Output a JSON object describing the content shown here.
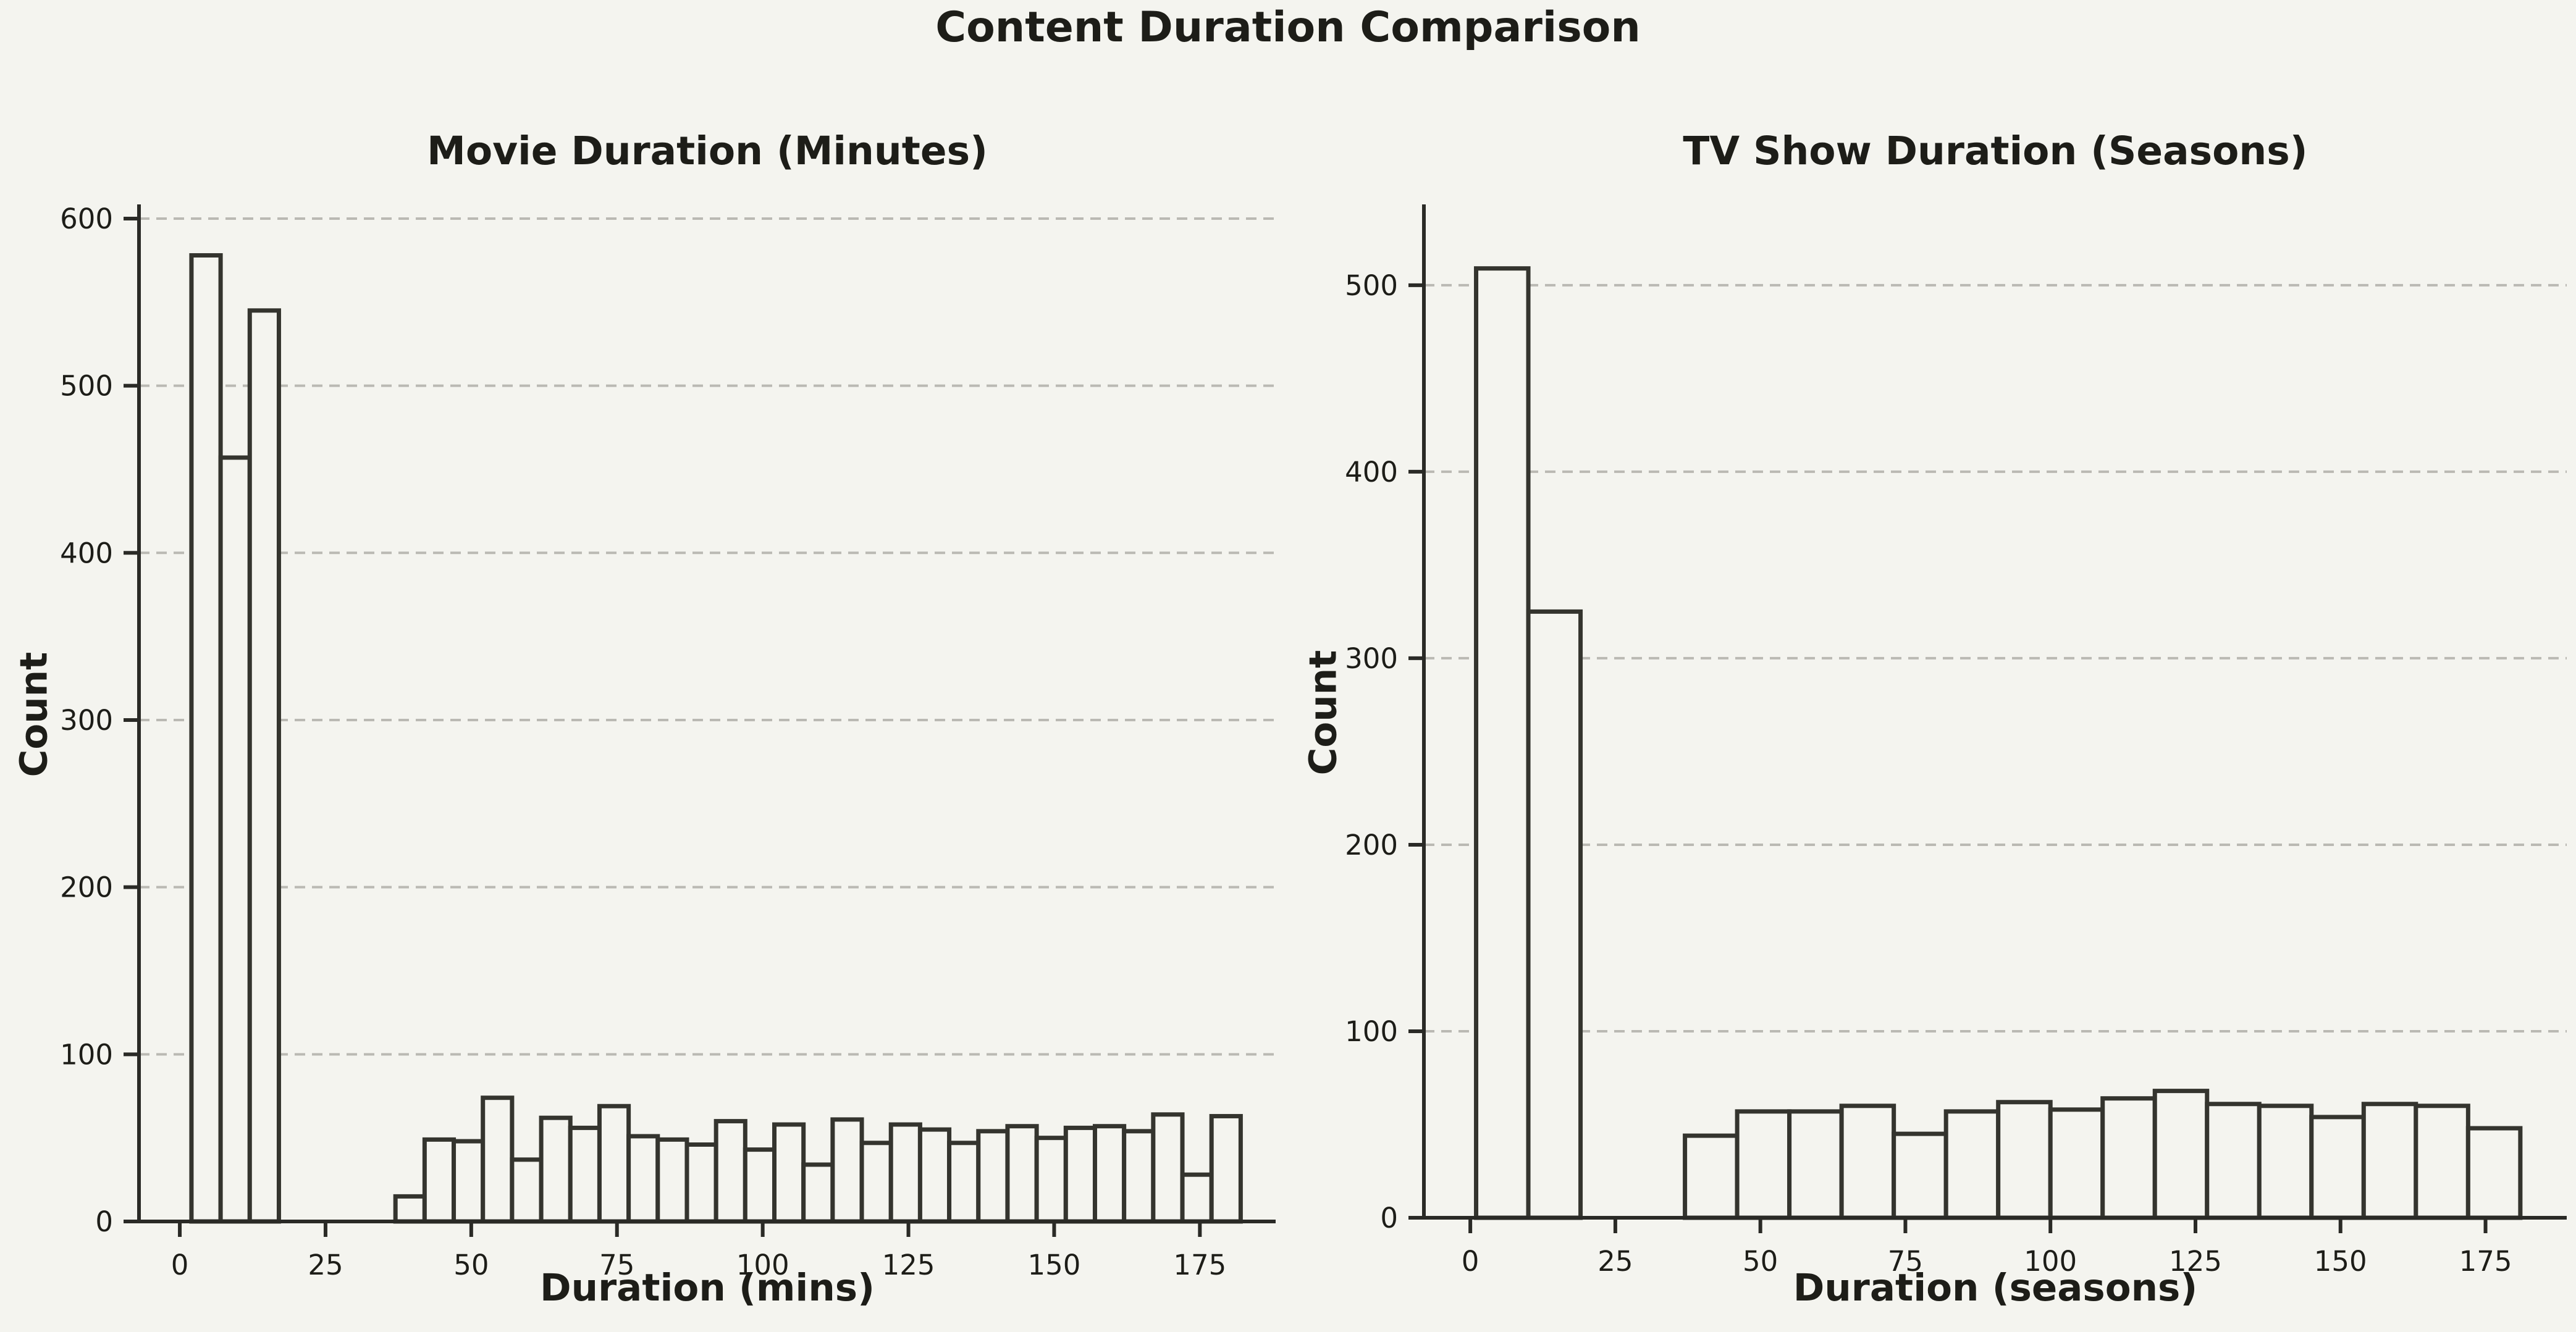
{
  "figure": {
    "suptitle": "Content Duration Comparison"
  },
  "style": {
    "background": "#f4f4ef",
    "bar_fill": "#f4f4ef",
    "bar_edge": "#34342e",
    "spine": "#2a2a26",
    "text": "#1d1d18",
    "grid_color": "#bab9b3"
  },
  "chart_data": [
    {
      "type": "bar",
      "subtype": "histogram",
      "title": "Movie Duration (Minutes)",
      "xlabel": "Duration (mins)",
      "ylabel": "Count",
      "bin_edges": [
        2,
        7,
        12,
        17,
        22,
        27,
        32,
        37,
        42,
        47,
        52,
        57,
        62,
        67,
        72,
        77,
        82,
        87,
        92,
        97,
        102,
        107,
        112,
        117,
        122,
        127,
        132,
        137,
        142,
        147,
        152,
        157,
        162,
        167,
        172,
        177,
        182
      ],
      "values": [
        578,
        457,
        545,
        0,
        0,
        0,
        0,
        15,
        49,
        48,
        74,
        37,
        62,
        56,
        69,
        51,
        49,
        46,
        60,
        43,
        58,
        34,
        61,
        47,
        58,
        55,
        47,
        54,
        57,
        50,
        56,
        57,
        54,
        64,
        28,
        63
      ],
      "xticks": [
        0,
        25,
        50,
        75,
        100,
        125,
        150,
        175
      ],
      "yticks": [
        0,
        100,
        200,
        300,
        400,
        500,
        600
      ],
      "xlim": [
        -7,
        188
      ],
      "ylim": [
        0,
        607
      ],
      "grid": "horizontal-dashed",
      "legend": "none"
    },
    {
      "type": "bar",
      "subtype": "histogram",
      "title": "TV Show Duration (Seasons)",
      "xlabel": "Duration (seasons)",
      "ylabel": "Count",
      "bin_edges": [
        1,
        10,
        19,
        28,
        37,
        46,
        55,
        64,
        73,
        82,
        91,
        100,
        109,
        118,
        127,
        136,
        145,
        154,
        163,
        172,
        181
      ],
      "values": [
        509,
        325,
        0,
        0,
        44,
        57,
        57,
        60,
        45,
        57,
        62,
        58,
        64,
        68,
        61,
        60,
        54,
        61,
        60,
        48
      ],
      "xticks": [
        0,
        25,
        50,
        75,
        100,
        125,
        150,
        175
      ],
      "yticks": [
        0,
        100,
        200,
        300,
        400,
        500
      ],
      "xlim": [
        -8,
        189
      ],
      "ylim": [
        0,
        542
      ],
      "grid": "horizontal-dashed",
      "legend": "none"
    }
  ]
}
